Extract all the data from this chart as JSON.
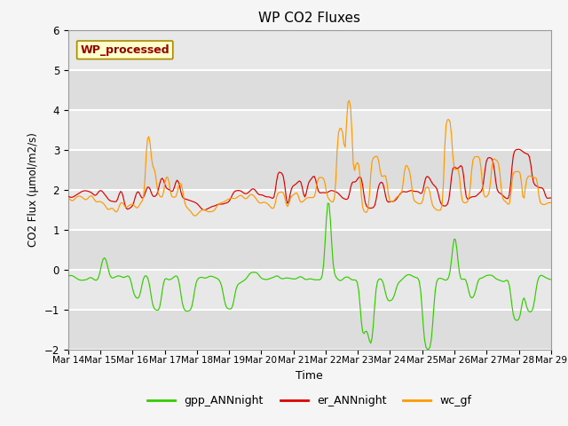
{
  "title": "WP CO2 Fluxes",
  "xlabel": "Time",
  "ylabel": "CO2 Flux (μmol/m2/s)",
  "ylim": [
    -2.0,
    6.0
  ],
  "yticks": [
    -2.0,
    -1.0,
    0.0,
    1.0,
    2.0,
    3.0,
    4.0,
    5.0,
    6.0
  ],
  "xlim_start": 0,
  "xlim_end": 360,
  "xtick_positions": [
    0,
    24,
    48,
    72,
    96,
    120,
    144,
    168,
    192,
    216,
    240,
    264,
    288,
    312,
    336,
    360
  ],
  "xtick_labels": [
    "Mar 14",
    "Mar 15",
    "Mar 16",
    "Mar 17",
    "Mar 18",
    "Mar 19",
    "Mar 20",
    "Mar 21",
    "Mar 22",
    "Mar 23",
    "Mar 24",
    "Mar 25",
    "Mar 26",
    "Mar 27",
    "Mar 28",
    "Mar 29"
  ],
  "colors": {
    "gpp": "#33cc00",
    "er": "#dd0000",
    "wc": "#ff9900"
  },
  "watermark_text": "WP_processed",
  "watermark_color": "#990000",
  "watermark_bg": "#ffffcc",
  "watermark_edge": "#aa8800",
  "plot_bg": "#e8e8e8",
  "fig_bg": "#f5f5f5",
  "grid_color": "#ffffff",
  "legend_labels": [
    "gpp_ANNnight",
    "er_ANNnight",
    "wc_gf"
  ]
}
